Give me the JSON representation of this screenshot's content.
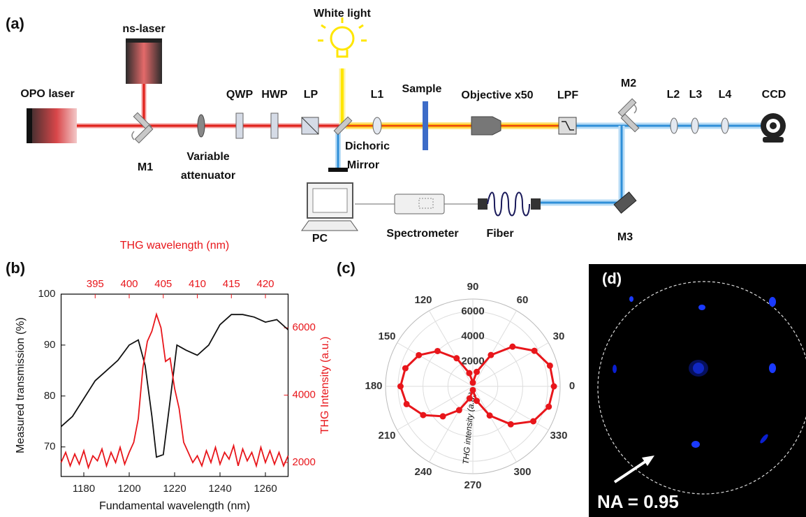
{
  "panel_labels": [
    "(a)",
    "(b)",
    "(c)",
    "(d)"
  ],
  "diagram": {
    "opo_laser": "OPO laser",
    "ns_laser": "ns-laser",
    "white_light": "White light",
    "m1": "M1",
    "attenuator": {
      "lines": [
        "Variable",
        "attenuator"
      ]
    },
    "qwp": "QWP",
    "hwp": "HWP",
    "lp": "LP",
    "l1": "L1",
    "sample": "Sample",
    "objective": "Objective x50",
    "lpf": "LPF",
    "m2": "M2",
    "l2": "L2",
    "l3": "L3",
    "l4": "L4",
    "ccd": "CCD",
    "dichroic": {
      "lines": [
        "Dichoric",
        "Mirror"
      ]
    },
    "pc": "PC",
    "spectrometer": "Spectrometer",
    "fiber": "Fiber",
    "m3": "M3"
  },
  "image_d": {
    "annotation": "NA = 0.95"
  },
  "chart_data": [
    {
      "type": "line",
      "xlabel": "Fundamental wavelength (nm)",
      "ylabel": "Measured transmission (%)",
      "x2label": "THG wavelength (nm)",
      "y2label": "THG Intensity (a.u.)",
      "xlim": [
        1170,
        1270
      ],
      "xticks": [
        1180,
        1200,
        1220,
        1240,
        1260
      ],
      "x2lim": [
        390,
        423.33
      ],
      "x2ticks": [
        395,
        400,
        405,
        410,
        415,
        420
      ],
      "ylim": [
        64.2,
        100
      ],
      "yticks": [
        70,
        80,
        90,
        100
      ],
      "y2lim": [
        1585,
        7000
      ],
      "y2ticks": [
        2000,
        4000,
        6000
      ],
      "series": [
        {
          "color": "#111111",
          "axis": "y",
          "x": [
            1170,
            1175,
            1180,
            1185,
            1190,
            1195,
            1200,
            1204,
            1207,
            1210,
            1212,
            1215,
            1218,
            1221,
            1225,
            1230,
            1235,
            1240,
            1245,
            1250,
            1255,
            1260,
            1265,
            1270
          ],
          "values": [
            74,
            76,
            79.5,
            83,
            85,
            87,
            90,
            91,
            86,
            76,
            68,
            68.5,
            79,
            90,
            89,
            88,
            90,
            94,
            96,
            96,
            95.5,
            94.5,
            95,
            93
          ]
        },
        {
          "color": "#e8161b",
          "axis": "y2",
          "x": [
            1170,
            1172,
            1174,
            1176,
            1178,
            1180,
            1182,
            1184,
            1186,
            1188,
            1190,
            1192,
            1194,
            1196,
            1198,
            1200,
            1202,
            1204,
            1206,
            1208,
            1210,
            1212,
            1214,
            1216,
            1218,
            1220,
            1222,
            1224,
            1226,
            1228,
            1230,
            1232,
            1234,
            1236,
            1238,
            1240,
            1242,
            1244,
            1246,
            1248,
            1250,
            1252,
            1254,
            1256,
            1258,
            1260,
            1262,
            1264,
            1266,
            1268,
            1270
          ],
          "values": [
            2000,
            2300,
            1900,
            2250,
            1950,
            2350,
            1850,
            2200,
            2050,
            2400,
            1900,
            2300,
            2000,
            2450,
            1950,
            2300,
            2600,
            3300,
            4800,
            5600,
            5900,
            6400,
            6000,
            5000,
            5100,
            4200,
            3600,
            2600,
            2300,
            2000,
            2200,
            1900,
            2350,
            2000,
            2450,
            1950,
            2300,
            2100,
            2500,
            1900,
            2400,
            2050,
            2300,
            1900,
            2450,
            2000,
            2350,
            1950,
            2300,
            1900,
            2200
          ]
        }
      ]
    },
    {
      "type": "polar",
      "color": "#e8161b",
      "r_axis_label": "THG intensity (a.u.)",
      "rlim": [
        0,
        7000
      ],
      "rticks": [
        2000,
        4000,
        6000
      ],
      "thetaticks": [
        0,
        30,
        60,
        90,
        120,
        150,
        180,
        210,
        240,
        270,
        300,
        330
      ],
      "theta": [
        0,
        15,
        30,
        45,
        60,
        75,
        90,
        105,
        120,
        135,
        150,
        165,
        180,
        195,
        210,
        225,
        240,
        255,
        270,
        285,
        300,
        315,
        330,
        345
      ],
      "values": [
        6500,
        6400,
        5700,
        4500,
        2900,
        1200,
        300,
        1100,
        2600,
        4000,
        5000,
        5600,
        5800,
        5500,
        4600,
        3400,
        2200,
        1000,
        300,
        1200,
        2700,
        4300,
        5600,
        6300
      ]
    }
  ]
}
